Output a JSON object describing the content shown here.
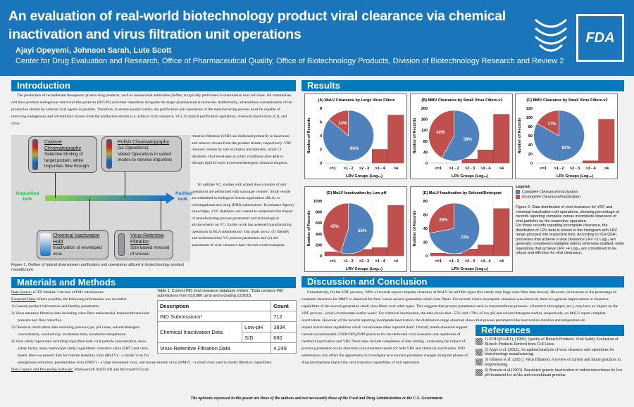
{
  "header": {
    "title": "An evaluation of real-world biotechnology product viral clearance via chemical inactivation and virus filtration unit operations",
    "authors": "Ajayi Opeyemi, Johnson Sarah, Lute Scott",
    "affiliation": "Center for Drug Evaluation and Research, Office of Pharmaceutical Quality, Office of Biotechnology Products, Division of Biotechnology Research and Review 2",
    "logo": "FDA"
  },
  "intro": {
    "heading": "Introduction",
    "p1": "The production of recombinant therapeutic protein drug products, such as monoclonal antibodies (mAbs) is typically performed in mammalian host cell lines. All mammalian cell lines produce endogenous retroviral-like particles (RVLPs) and other impurities alongside the target pharmaceutical molecule. Additionally, adventitious contamination of the production stream by external viral agents is possible. Therefore, to ensure product safety, the purification unit operations of the manufacturing process must be capable of removing endogenous and adventitious viruses from the production stream (i.e. achieve viral clearance, VC). In typical purification operations, chemical inactivation (CI), and virus-",
    "p2": "retentive filtration (VRF) are dedicated primarily to inactivate and remove viruses from the product stream, respectively. VRF removes viruses by size exclusion mechanisms, while CI denatures viral envelopes in acidic conditions (low-pH) or disrupts lipid bi-layer in solvent/detergent chemical reagents.",
    "p3": "To validate VC, studies with scaled down models of unit operations are performed with surrogate viruses¹. Study results are submitted in biological license application (BLA) or investigational new drug (IND) submissions. To enhance Agency knowledge, a VC database was created to understand the impact of manufacturing process parameters and technological advancements on VC. Earlier work has assessed manufacturing operations in BLA submissions². Our goals are to: (1) identify and understand key VC process parameters and (2) aid assessment of viral clearance data via real-world examples."
  },
  "figure1": {
    "capture_title": "Capture Chromatography",
    "capture_text": "Selective binding of target protein, while impurities flow through",
    "polish_title": "Polish Chromatography",
    "polish_sub": "(≥1 Operations)",
    "polish_text": "Varied Operations in varied modes to remove impurities",
    "ci_title": "Chemical Inactivation Hold",
    "ci_text": "Inactivation of enveloped virus",
    "vrf_title": "Virus-Retentive Filtration",
    "vrf_text": "Size based removal of viruses",
    "start": "Unpurified bulk",
    "end": "Purified bulk",
    "caption": "Figure 1. Outline of typical downstream purification unit operations utilized in biotechnology product manufacture."
  },
  "methods": {
    "heading": "Materials and Methods",
    "source_label": "Data Source:",
    "source": " eCTD Module 3 section of IND submissions.",
    "extracted_label": "Extracted Data:",
    "extracted": " Where possible, the following information was recorded:",
    "items": [
      "1)  General product information and identity parameters.",
      "2)  Virus retentive filtration data including virus filter make/model, transmembrane/inlet pressure and flow rates/flux.",
      "3)  Chemical inactivation data including process type, pH value, solvent/detergent concentration, conductivity, incubation time, incubation temperature.",
      "4)  Viral safety report data including unpurified bulk viral particle concentration, dose-safety factor, assay method per study, logarithmic clearance value (LRV) and virus tested. Here we present data for murine leukemia virus (MuLV) – a model virus for endogenous retrovirus, pseudorabies virus (PsRV) – a large enveloped virus, and mouse minute virus (MMV) – a small virus used to model filtration capabilities."
    ],
    "software_label": "Data Capture and Processing Software:",
    "software": " Mathworks® MATLAB and Microsoft® Excel."
  },
  "table1": {
    "caption": "Table 1. Current IND viral clearance database entries. *Data contains IND submissions from 01/1980 up to and including 12/2015.",
    "h_desc": "Description",
    "h_count": "Count",
    "r1": "IND Submissions*",
    "r1c": "712",
    "r2": "Chemical Inactivation Data",
    "r2a": "Low-pH",
    "r2ac": "3834",
    "r2b": "S/D",
    "r2bc": "660",
    "r3": "Virus-Retentive Filtration Data",
    "r3c": "4,249"
  },
  "results": {
    "heading": "Results",
    "legend_title": "Legend:",
    "legend_complete": "Complete Clearance/Inactivation",
    "legend_incomplete": "Incomplete Clearance/Inactivation",
    "fig2_caption": "Figure 2. Data distribution of viral clearance for VRF and chemical inactivation unit operations, showing percentage of records reporting complete versus incomplete clearance of viral particles by the respective operation.",
    "fig2_caption2": "For those records reporting incomplete clearance, the distribution of LRV data is shown in the histogram with LRV range grouped into respective bins. According to ICH Q5A¹, processes that achieve a viral clearance LRV <1 Log₁₀ are generally considered negligible unless otherwise justified, while operations that achieve LRV >4 Log₁₀ are considered to be robust and effective for viral clearance."
  },
  "colors": {
    "complete": "#4f81bd",
    "incomplete": "#c0504d",
    "header": "#1a75bb",
    "section": "#0079bd"
  },
  "chart_data": [
    {
      "type": "bar+pie",
      "title": "(A) MuLV Clearance by Large Virus Filters",
      "ylabel": "Number of Records",
      "xlabel": "LRV Groups (Log₁₀)",
      "categories": [
        "<=1",
        ">1 - 2",
        ">2 - 3",
        ">3 - 4",
        ">4"
      ],
      "values": [
        0,
        0,
        0,
        2,
        7
      ],
      "ylim": [
        0,
        8
      ],
      "yticks": [
        0,
        2,
        4,
        6,
        8
      ],
      "pie": {
        "complete": 86,
        "incomplete": 14
      }
    },
    {
      "type": "bar+pie",
      "title": "(B) MMV Clearance by Small Virus Filters-v1",
      "ylabel": "Number of Records",
      "xlabel": "LRV Groups (Log₁₀)",
      "categories": [
        "<=1",
        ">1 - 2",
        ">2 - 3",
        ">3 - 4",
        ">4"
      ],
      "values": [
        0,
        0,
        15,
        48,
        178
      ],
      "ylim": [
        0,
        200
      ],
      "yticks": [
        0,
        40,
        80,
        120,
        160,
        200
      ],
      "pie": {
        "complete": 58,
        "incomplete": 42
      }
    },
    {
      "type": "bar+pie",
      "title": "(C) MMV Clearance by Small Virus Filters-v2",
      "ylabel": "Number of Records",
      "xlabel": "LRV Groups (Log₁₀)",
      "categories": [
        "<=1",
        ">1 - 2",
        ">2 - 3",
        ">3 - 4",
        ">4"
      ],
      "values": [
        0,
        0,
        0,
        5,
        96
      ],
      "ylim": [
        0,
        120
      ],
      "yticks": [
        0,
        20,
        40,
        60,
        80,
        100,
        120
      ],
      "pie": {
        "complete": 83,
        "incomplete": 17
      }
    },
    {
      "type": "bar+pie",
      "title": "(D) MuLV Inactivation by Low pH",
      "ylabel": "Number of Records",
      "xlabel": "LRV Groups (Log₁₀)",
      "categories": [
        "<=1",
        ">1 - 2",
        ">2 - 3",
        ">3 - 4",
        ">4"
      ],
      "values": [
        75,
        90,
        120,
        150,
        920
      ],
      "ylim": [
        0,
        1000
      ],
      "yticks": [
        0,
        200,
        400,
        600,
        800,
        1000
      ],
      "pie": {
        "complete": 55,
        "incomplete": 45
      }
    },
    {
      "type": "bar+pie",
      "title": "(E) MuLV Inactivation by Solvent/Detergent",
      "ylabel": "Number of Records",
      "xlabel": "LRV Groups (Log₁₀)",
      "categories": [
        "<=1",
        ">1 - 2",
        ">2 - 3",
        ">3 - 4",
        ">4"
      ],
      "values": [
        4,
        3,
        10,
        16,
        69
      ],
      "ylim": [
        0,
        80
      ],
      "yticks": [
        0,
        20,
        40,
        60,
        80
      ],
      "pie": {
        "complete": 72,
        "incomplete": 28
      }
    }
  ],
  "discussion": {
    "heading": "Discussion and Conclusion",
    "p1": "Cumulatively, for the VRF process, >80% of records report complete clearance of MuLV for all filter types (for clarity only large virus filter data shown). However, an increase in the percentage of complete clearance for MMV is observed for first- versus second-generation small virus filters. For records where incomplete clearance was observed, there is a general improvement in clearance capabilities of the second-generation small virus filters over other types. This suggests that process parameters such as transmembrane pressure, volumetric throughput, etc.), may have an impact on the VRF process , which corroborates earlier work³. For chemical inactivation, the data shows that ~55% and >70% of low pH and solvent/detergent studies, respectively, on MuLV report complete inactivation.  However, of the records reporting incomplete inactivation, the distribution range observed shows that process parameters like inactivation duration and temperature do",
    "p2": "impact inactivation capabilities which corroborates other reported data⁴. Overall, trends observed support current recommended CDER/OPQ/OBP practices for the dedicated viral clearance unit operations of chemical inactivation and VRF. Next steps include completion of data mining , evaluating the impact of process parameters on the observed viral clearance trends for both VRF and chemical inactivation. IND submissions also offers the opportunity to investigate how process parameter changes along the phases of drug development impact the viral clearance capabilities of unit operations."
  },
  "references": {
    "heading": "References",
    "items": [
      "1) ICH-Q5A(R1), (1999). Quality of Biotech Products: Viral Safety Evaluation of Biotech Products Derived from Cell Lines.",
      "2) Ajayi et al. (2022). An updated analysis of viral clearance unit operations for biotechnology manufacturing.",
      "3) Johnson et al. (2021). Virus filtration: A review of current and future practices in bioprocessing.",
      "4) Brorson et al (2003). Bracketed generic inactivation of rodent retroviruses by low pH treatment for mAbs and recombinant proteins."
    ]
  },
  "footer": "The opinions expressed in this poster are those of the authors and not necessarily those of the Food and Drug Administration or the U.S. Government."
}
